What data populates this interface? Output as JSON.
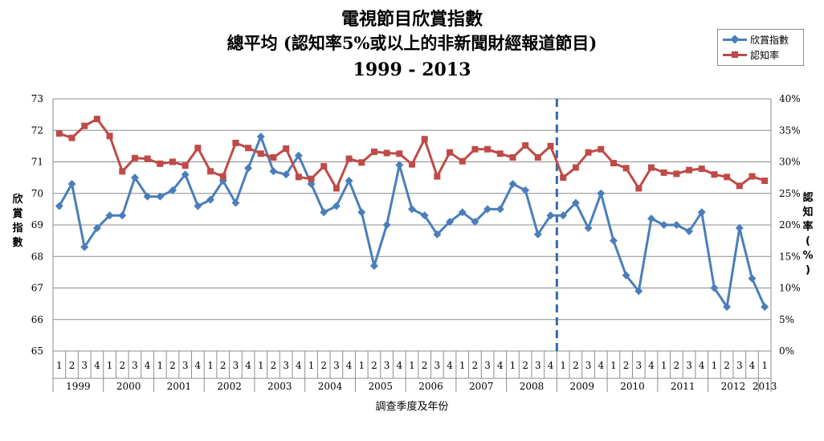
{
  "chart_data": {
    "type": "line",
    "title": "電視節目欣賞指數",
    "subtitle": "總平均 (認知率5%或以上的非新聞財經報道節目)",
    "period": "1999 - 2013",
    "xlabel": "調查季度及年份",
    "ylabel_left": "欣賞指數",
    "ylabel_right": "認知率(%)",
    "ylim_left": [
      65,
      73
    ],
    "ylim_right": [
      0,
      40
    ],
    "yticks_left": [
      "65",
      "66",
      "67",
      "68",
      "69",
      "70",
      "71",
      "72",
      "73"
    ],
    "yticks_right": [
      "0%",
      "5%",
      "10%",
      "15%",
      "20%",
      "25%",
      "30%",
      "35%",
      "40%"
    ],
    "legend_position": "top-right",
    "grid": true,
    "divider_after_index": 39,
    "quarters": [
      "1",
      "2",
      "3",
      "4",
      "1",
      "2",
      "3",
      "4",
      "1",
      "2",
      "3",
      "4",
      "1",
      "2",
      "3",
      "4",
      "1",
      "2",
      "3",
      "4",
      "1",
      "2",
      "3",
      "4",
      "1",
      "2",
      "3",
      "4",
      "1",
      "2",
      "3",
      "4",
      "1",
      "2",
      "3",
      "4",
      "1",
      "2",
      "3",
      "4",
      "1",
      "2",
      "3",
      "4",
      "1",
      "2",
      "3",
      "4",
      "1",
      "2",
      "3",
      "4",
      "1",
      "2",
      "3",
      "4",
      "1"
    ],
    "years": [
      {
        "label": "1999",
        "quarters": 4
      },
      {
        "label": "2000",
        "quarters": 4
      },
      {
        "label": "2001",
        "quarters": 4
      },
      {
        "label": "2002",
        "quarters": 4
      },
      {
        "label": "2003",
        "quarters": 4
      },
      {
        "label": "2004",
        "quarters": 4
      },
      {
        "label": "2005",
        "quarters": 4
      },
      {
        "label": "2006",
        "quarters": 4
      },
      {
        "label": "2007",
        "quarters": 4
      },
      {
        "label": "2008",
        "quarters": 4
      },
      {
        "label": "2009",
        "quarters": 4
      },
      {
        "label": "2010",
        "quarters": 4
      },
      {
        "label": "2011",
        "quarters": 4
      },
      {
        "label": "2012",
        "quarters": 4
      },
      {
        "label": "2013",
        "quarters": 1
      }
    ],
    "series": [
      {
        "name": "欣賞指數",
        "axis": "left",
        "color": "#4a7ebb",
        "values": [
          69.6,
          70.3,
          68.3,
          68.9,
          69.3,
          69.3,
          70.5,
          69.9,
          69.9,
          70.1,
          70.6,
          69.6,
          69.8,
          70.4,
          69.7,
          70.8,
          71.8,
          70.7,
          70.6,
          71.2,
          70.3,
          69.4,
          69.6,
          70.4,
          69.4,
          67.7,
          69.0,
          70.9,
          69.5,
          69.3,
          68.7,
          69.1,
          69.4,
          69.1,
          69.5,
          69.5,
          70.3,
          70.1,
          68.7,
          69.3,
          69.3,
          69.7,
          68.9,
          70.0,
          68.5,
          67.4,
          66.9,
          69.2,
          69.0,
          69.0,
          68.8,
          69.4,
          67.0,
          66.4,
          68.9,
          67.3,
          66.4
        ]
      },
      {
        "name": "認知率",
        "axis": "right",
        "color": "#be4b48",
        "values": [
          34.5,
          33.8,
          35.7,
          36.8,
          34.1,
          28.5,
          30.6,
          30.5,
          29.7,
          30.0,
          29.4,
          32.2,
          28.5,
          27.7,
          33.0,
          32.2,
          31.3,
          30.7,
          32.1,
          27.6,
          27.3,
          29.3,
          25.8,
          30.5,
          29.9,
          31.6,
          31.4,
          31.3,
          29.6,
          33.6,
          27.7,
          31.5,
          30.1,
          32.0,
          32.0,
          31.3,
          30.7,
          32.6,
          30.7,
          32.5,
          27.5,
          29.1,
          31.5,
          32.0,
          29.8,
          29.0,
          25.8,
          29.1,
          28.3,
          28.1,
          28.7,
          28.9,
          28.0,
          27.6,
          26.2,
          27.7,
          27.0
        ]
      }
    ]
  }
}
